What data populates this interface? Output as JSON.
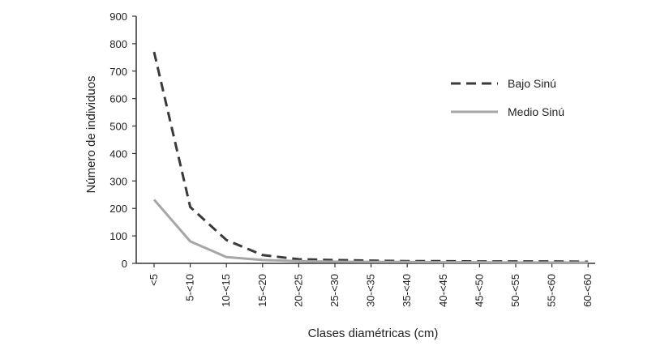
{
  "chart_data": {
    "type": "line",
    "title": "",
    "xlabel": "Clases diamétricas (cm)",
    "ylabel": "Número de individuos",
    "categories": [
      "<5",
      "5-<10",
      "10-<15",
      "15-<20",
      "20-<25",
      "25-<30",
      "30-<35",
      "35-<40",
      "40-<45",
      "45-<50",
      "50-<55",
      "55-<60",
      "60-<60"
    ],
    "ylim": [
      0,
      900
    ],
    "yticks": [
      0,
      100,
      200,
      300,
      400,
      500,
      600,
      700,
      800,
      900
    ],
    "grid": false,
    "legend_position": "right",
    "series": [
      {
        "name": "Bajo Sinú",
        "style": "dashed",
        "color": "#3a3a3a",
        "values": [
          770,
          205,
          85,
          30,
          15,
          12,
          10,
          8,
          8,
          7,
          7,
          7,
          6
        ]
      },
      {
        "name": "Medio Sinú",
        "style": "solid",
        "color": "#a6a6a6",
        "values": [
          232,
          80,
          23,
          12,
          8,
          6,
          5,
          5,
          4,
          4,
          3,
          3,
          3
        ]
      }
    ]
  }
}
